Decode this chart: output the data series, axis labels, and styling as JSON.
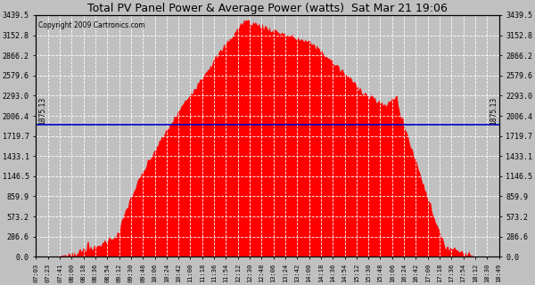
{
  "title": "Total PV Panel Power & Average Power (watts)  Sat Mar 21 19:06",
  "copyright": "Copyright 2009 Cartronics.com",
  "avg_power": 1875.13,
  "ymax": 3439.5,
  "ymin": 0.0,
  "yticks": [
    0.0,
    286.6,
    573.2,
    859.9,
    1146.5,
    1433.1,
    1719.7,
    2006.4,
    2293.0,
    2579.6,
    2866.2,
    3152.8,
    3439.5
  ],
  "bg_color": "#c0c0c0",
  "plot_bg_color": "#c0c0c0",
  "fill_color": "#ff0000",
  "avg_line_color": "#0000cc",
  "title_color": "#000000",
  "grid_color": "#ffffff",
  "tick_label_color": "#000000",
  "time_labels": [
    "07:03",
    "07:23",
    "07:41",
    "08:00",
    "08:18",
    "08:36",
    "08:54",
    "09:12",
    "09:30",
    "09:48",
    "10:06",
    "10:24",
    "10:42",
    "11:00",
    "11:18",
    "11:36",
    "11:54",
    "12:12",
    "12:30",
    "12:48",
    "13:06",
    "13:24",
    "13:42",
    "14:00",
    "14:18",
    "14:36",
    "14:54",
    "15:12",
    "15:30",
    "15:48",
    "16:06",
    "16:24",
    "16:42",
    "17:00",
    "17:18",
    "17:36",
    "17:54",
    "18:12",
    "18:30",
    "18:49"
  ]
}
